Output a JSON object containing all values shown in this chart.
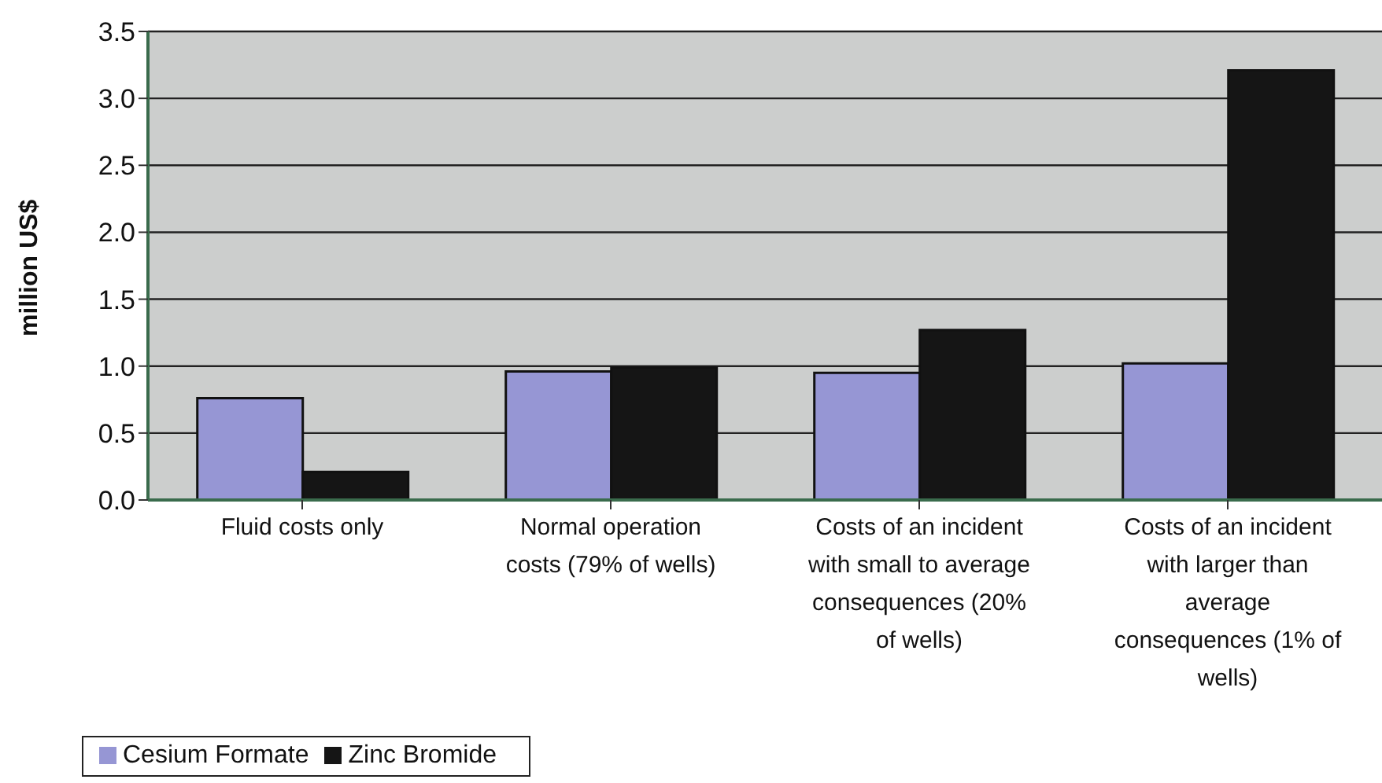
{
  "chart_data": {
    "type": "bar",
    "ylabel": "million US$",
    "categories": [
      "Fluid costs only",
      "Normal operation costs (79% of wells)",
      "Costs of an incident with small to average consequences (20% of wells)",
      "Costs of an incident with larger than average consequences (1% of wells)"
    ],
    "series": [
      {
        "name": "Cesium Formate",
        "color": "#9696d4",
        "values": [
          0.76,
          0.96,
          0.95,
          1.02
        ]
      },
      {
        "name": "Zinc Bromide",
        "color": "#151515",
        "values": [
          0.21,
          0.99,
          1.27,
          3.21
        ]
      }
    ],
    "ylim": [
      0,
      3.5
    ],
    "yticks": [
      {
        "value": 0,
        "label": "0.0"
      },
      0.5,
      {
        "value": 1,
        "label": "1.0"
      },
      1.5,
      {
        "value": 2,
        "label": "2.0"
      },
      2.5,
      {
        "value": 3,
        "label": "3.0"
      },
      3.5
    ],
    "grid": "y",
    "legend": "bottom left"
  }
}
